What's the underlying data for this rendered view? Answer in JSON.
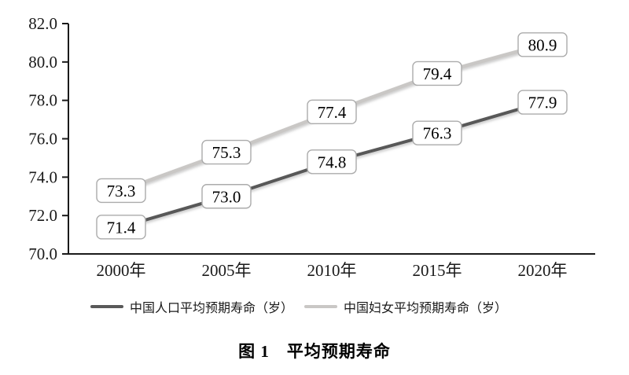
{
  "figure": {
    "caption": "图 1　平均预期寿命"
  },
  "chart_data": {
    "type": "line",
    "title": "图 1　平均预期寿命",
    "categories": [
      "2000年",
      "2005年",
      "2010年",
      "2015年",
      "2020年"
    ],
    "series": [
      {
        "name": "中国人口平均预期寿命（岁）",
        "values": [
          71.4,
          73.0,
          74.8,
          76.3,
          77.9
        ],
        "color": "#595959"
      },
      {
        "name": "中国妇女平均预期寿命（岁）",
        "values": [
          73.3,
          75.3,
          77.4,
          79.4,
          80.9
        ],
        "color": "#c9c7c5"
      }
    ],
    "ylim": [
      70,
      82
    ],
    "yticks": [
      70,
      72,
      74,
      76,
      78,
      80,
      82
    ],
    "ytick_labels": [
      "70.0",
      "72.0",
      "74.0",
      "76.0",
      "78.0",
      "80.0",
      "82.0"
    ],
    "xlabel": "",
    "ylabel": "",
    "grid": false,
    "data_labels": true,
    "legend_position": "bottom",
    "colors": {
      "axis": "#1a1a1a",
      "label_box_fill": "#ffffff",
      "label_box_border": "#ababab",
      "label_text": "#000000"
    }
  }
}
